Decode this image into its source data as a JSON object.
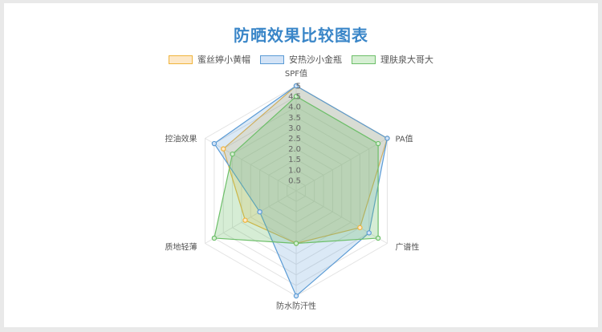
{
  "page": {
    "title": "防晒效果比较图表"
  },
  "chart_data": {
    "type": "radar",
    "title": "防晒效果比较图表",
    "axes": [
      "SPF值",
      "PA值",
      "广谱性",
      "防水防汗性",
      "质地轻薄",
      "控油效果"
    ],
    "r_range": [
      0,
      5
    ],
    "ticks": [
      "0.5",
      "1.0",
      "1.5",
      "2.0",
      "2.5",
      "3.0",
      "3.5",
      "4.0",
      "4.5",
      "5"
    ],
    "tick_values": [
      0.5,
      1.0,
      1.5,
      2.0,
      2.5,
      3.0,
      3.5,
      4.0,
      4.5,
      5.0
    ],
    "legend_position": "top",
    "series": [
      {
        "name": "蜜丝婷小黄帽",
        "values": [
          5,
          5,
          3.5,
          2.5,
          2.8,
          4.0
        ],
        "stroke": "#f0b43c",
        "fill": "rgba(240, 180, 60, 0.22)",
        "legend_fill": "#fde8c8"
      },
      {
        "name": "安热沙小金瓶",
        "values": [
          5,
          5,
          4.0,
          5.0,
          2.0,
          4.5
        ],
        "stroke": "#5b9bd5",
        "fill": "rgba(91, 155, 213, 0.22)",
        "legend_fill": "#d3e3f6"
      },
      {
        "name": "理肤泉大哥大",
        "values": [
          4.5,
          4.5,
          4.5,
          2.5,
          4.5,
          3.5
        ],
        "stroke": "#6dbf69",
        "fill": "rgba(109, 191, 105, 0.28)",
        "legend_fill": "#d6efd3"
      }
    ]
  }
}
